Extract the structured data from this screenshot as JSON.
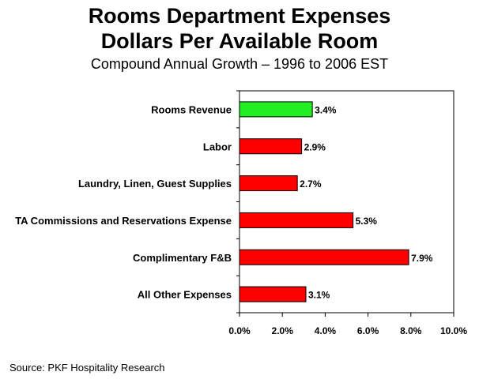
{
  "chart_data": {
    "type": "bar",
    "orientation": "horizontal",
    "title": "Rooms Department Expenses",
    "title_line2": "Dollars Per Available Room",
    "subtitle": "Compound Annual Growth – 1996 to 2006 EST",
    "categories": [
      "Rooms Revenue",
      "Labor",
      "Laundry, Linen, Guest Supplies",
      "TA Commissions and Reservations Expense",
      "Complimentary F&B",
      "All Other Expenses"
    ],
    "values": [
      3.4,
      2.9,
      2.7,
      5.3,
      7.9,
      3.1
    ],
    "value_labels": [
      "3.4%",
      "2.9%",
      "2.7%",
      "5.3%",
      "7.9%",
      "3.1%"
    ],
    "bar_colors": [
      "#22ee22",
      "#ff0000",
      "#ff0000",
      "#ff0000",
      "#ff0000",
      "#ff0000"
    ],
    "xlim": [
      0,
      10
    ],
    "xticks": [
      0,
      2,
      4,
      6,
      8,
      10
    ],
    "xtick_labels": [
      "0.0%",
      "2.0%",
      "4.0%",
      "6.0%",
      "8.0%",
      "10.0%"
    ],
    "grid": false,
    "legend": "none",
    "source": "Source: PKF Hospitality Research"
  }
}
